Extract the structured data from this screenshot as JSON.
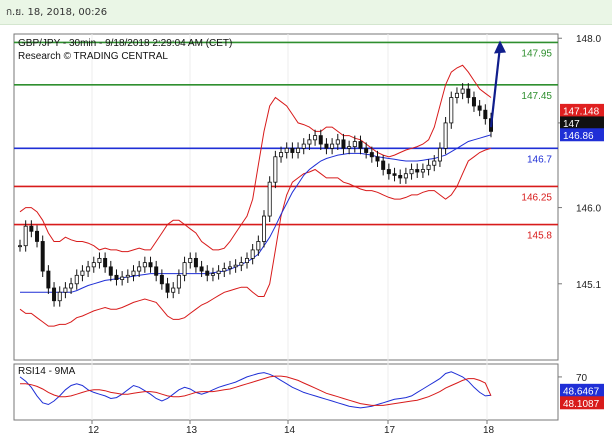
{
  "header": {
    "timestamp": "ก.ย. 18, 2018, 00:26"
  },
  "chart_data": [
    {
      "type": "candlestick",
      "title": "GBP/JPY - 30min - 9/18/2018 2:29:04 AM (CET)",
      "subtitle": "Research © TRADING CENTRAL",
      "x_ticks": [
        "12",
        "13",
        "14",
        "17",
        "18"
      ],
      "y_ticks": [
        "148.0",
        "147.0",
        "146.0",
        "145.1"
      ],
      "ylim": [
        144.2,
        148.05
      ],
      "levels": [
        {
          "label": "147.95",
          "value": 147.95,
          "color": "#2f8f2f"
        },
        {
          "label": "147.45",
          "value": 147.45,
          "color": "#2f8f2f"
        },
        {
          "label": "146.7",
          "value": 146.7,
          "color": "#1f2fd6"
        },
        {
          "label": "146.25",
          "value": 146.25,
          "color": "#d81b1b"
        },
        {
          "label": "145.8",
          "value": 145.8,
          "color": "#d81b1b"
        }
      ],
      "price_tags": [
        {
          "label": "147.148",
          "value": 147.148,
          "color": "#e02020"
        },
        {
          "label": "147",
          "value": 147.0,
          "color": "#111111"
        },
        {
          "label": "146.86",
          "value": 146.86,
          "color": "#1f2fd6"
        }
      ],
      "close_series": [
        145.55,
        145.78,
        145.72,
        145.6,
        145.25,
        145.05,
        144.9,
        145.0,
        145.05,
        145.1,
        145.2,
        145.25,
        145.3,
        145.35,
        145.4,
        145.3,
        145.2,
        145.15,
        145.18,
        145.2,
        145.25,
        145.3,
        145.35,
        145.3,
        145.2,
        145.1,
        145.0,
        145.05,
        145.2,
        145.35,
        145.4,
        145.3,
        145.25,
        145.2,
        145.22,
        145.25,
        145.28,
        145.3,
        145.32,
        145.35,
        145.4,
        145.5,
        145.6,
        145.9,
        146.3,
        146.6,
        146.65,
        146.7,
        146.65,
        146.7,
        146.75,
        146.8,
        146.85,
        146.75,
        146.7,
        146.75,
        146.8,
        146.7,
        146.72,
        146.78,
        146.7,
        146.65,
        146.6,
        146.55,
        146.45,
        146.4,
        146.38,
        146.35,
        146.4,
        146.45,
        146.42,
        146.45,
        146.5,
        146.55,
        146.7,
        147.0,
        147.3,
        147.35,
        147.4,
        147.3,
        147.2,
        147.15,
        147.05,
        146.9
      ],
      "bb_upper": [
        145.95,
        146.0,
        146.0,
        145.95,
        145.85,
        145.7,
        145.6,
        145.6,
        145.65,
        145.62,
        145.6,
        145.6,
        145.58,
        145.55,
        145.5,
        145.52,
        145.5,
        145.5,
        145.48,
        145.48,
        145.5,
        145.52,
        145.5,
        145.5,
        145.6,
        145.7,
        145.8,
        145.85,
        145.85,
        145.8,
        145.75,
        145.7,
        145.6,
        145.55,
        145.5,
        145.5,
        145.52,
        145.6,
        145.7,
        145.8,
        145.9,
        146.1,
        146.5,
        146.9,
        147.2,
        147.3,
        147.25,
        147.2,
        147.1,
        147.0,
        146.98,
        146.95,
        146.9,
        146.9,
        146.95,
        146.95,
        146.9,
        146.85,
        146.85,
        146.82,
        146.8,
        146.75,
        146.7,
        146.65,
        146.62,
        146.6,
        146.62,
        146.65,
        146.68,
        146.7,
        146.72,
        146.75,
        146.8,
        146.95,
        147.2,
        147.45,
        147.6,
        147.65,
        147.68,
        147.6,
        147.5,
        147.4,
        147.35,
        147.3
      ],
      "bb_lower": [
        144.8,
        144.75,
        144.75,
        144.7,
        144.65,
        144.6,
        144.6,
        144.62,
        144.62,
        144.65,
        144.7,
        144.72,
        144.75,
        144.78,
        144.8,
        144.82,
        144.8,
        144.8,
        144.82,
        144.85,
        144.88,
        144.9,
        144.92,
        144.9,
        144.88,
        144.8,
        144.72,
        144.68,
        144.68,
        144.7,
        144.75,
        144.8,
        144.85,
        144.88,
        144.92,
        144.96,
        145.0,
        145.02,
        145.04,
        145.06,
        145.06,
        145.0,
        144.95,
        144.95,
        145.1,
        145.5,
        145.9,
        146.15,
        146.3,
        146.35,
        146.4,
        146.42,
        146.45,
        146.4,
        146.35,
        146.35,
        146.35,
        146.3,
        146.28,
        146.25,
        146.22,
        146.2,
        146.2,
        146.18,
        146.15,
        146.12,
        146.1,
        146.1,
        146.12,
        146.15,
        146.15,
        146.18,
        146.2,
        146.2,
        146.15,
        146.1,
        146.15,
        146.25,
        146.4,
        146.55,
        146.6,
        146.65,
        146.68,
        146.7
      ],
      "moving_average": [
        145.0,
        145.0,
        145.0,
        145.0,
        145.0,
        145.0,
        145.0,
        145.0,
        145.0,
        145.0,
        145.02,
        145.05,
        145.08,
        145.1,
        145.12,
        145.14,
        145.15,
        145.16,
        145.17,
        145.18,
        145.19,
        145.2,
        145.21,
        145.22,
        145.22,
        145.22,
        145.22,
        145.22,
        145.22,
        145.22,
        145.22,
        145.22,
        145.22,
        145.22,
        145.23,
        145.24,
        145.25,
        145.27,
        145.3,
        145.33,
        145.36,
        145.4,
        145.45,
        145.55,
        145.65,
        145.78,
        145.92,
        146.05,
        146.18,
        146.28,
        146.38,
        146.45,
        146.5,
        146.55,
        146.58,
        146.6,
        146.62,
        146.63,
        146.64,
        146.64,
        146.64,
        146.63,
        146.62,
        146.6,
        146.59,
        146.58,
        146.57,
        146.56,
        146.55,
        146.55,
        146.55,
        146.56,
        146.57,
        146.58,
        146.6,
        146.62,
        146.66,
        146.7,
        146.74,
        146.78,
        146.8,
        146.82,
        146.84,
        146.86
      ],
      "forecast_arrow": [
        146.95,
        147.95
      ]
    },
    {
      "type": "line",
      "title": "RSI14 - 9MA",
      "y_ticks": [
        "70"
      ],
      "ylim": [
        20,
        85
      ],
      "series": [
        {
          "name": "RSI14",
          "color": "#1f2fd6",
          "values": [
            70,
            65,
            58,
            48,
            40,
            38,
            42,
            48,
            55,
            60,
            62,
            60,
            55,
            52,
            50,
            48,
            45,
            46,
            50,
            55,
            60,
            58,
            54,
            50,
            45,
            42,
            45,
            50,
            55,
            58,
            56,
            52,
            50,
            52,
            55,
            58,
            60,
            62,
            64,
            67,
            70,
            72,
            74,
            75,
            73,
            70,
            66,
            62,
            58,
            55,
            52,
            50,
            48,
            46,
            44,
            42,
            40,
            38,
            36,
            35,
            34,
            35,
            36,
            38,
            40,
            42,
            44,
            45,
            46,
            48,
            52,
            56,
            60,
            64,
            68,
            74,
            76,
            73,
            70,
            65,
            58,
            52,
            48,
            48.6467
          ]
        },
        {
          "name": "9MA",
          "color": "#d81b1b",
          "values": [
            62,
            62,
            61,
            59,
            56,
            52,
            49,
            47,
            47,
            48,
            50,
            52,
            54,
            55,
            55,
            54,
            52,
            51,
            50,
            50,
            51,
            52,
            53,
            53,
            52,
            50,
            48,
            47,
            47,
            48,
            50,
            52,
            53,
            53,
            53,
            54,
            55,
            56,
            58,
            60,
            62,
            64,
            66,
            68,
            70,
            71,
            71,
            70,
            68,
            66,
            63,
            60,
            57,
            54,
            51,
            49,
            47,
            45,
            43,
            41,
            39,
            38,
            37,
            37,
            37,
            38,
            39,
            40,
            41,
            42,
            43,
            45,
            47,
            50,
            53,
            57,
            60,
            63,
            66,
            68,
            68,
            66,
            63,
            48.1087
          ]
        }
      ],
      "value_tags": [
        {
          "label": "48.6467",
          "value": 48.6467,
          "color": "#1f2fd6"
        },
        {
          "label": "48.1087",
          "value": 48.1087,
          "color": "#d81b1b"
        }
      ]
    }
  ]
}
